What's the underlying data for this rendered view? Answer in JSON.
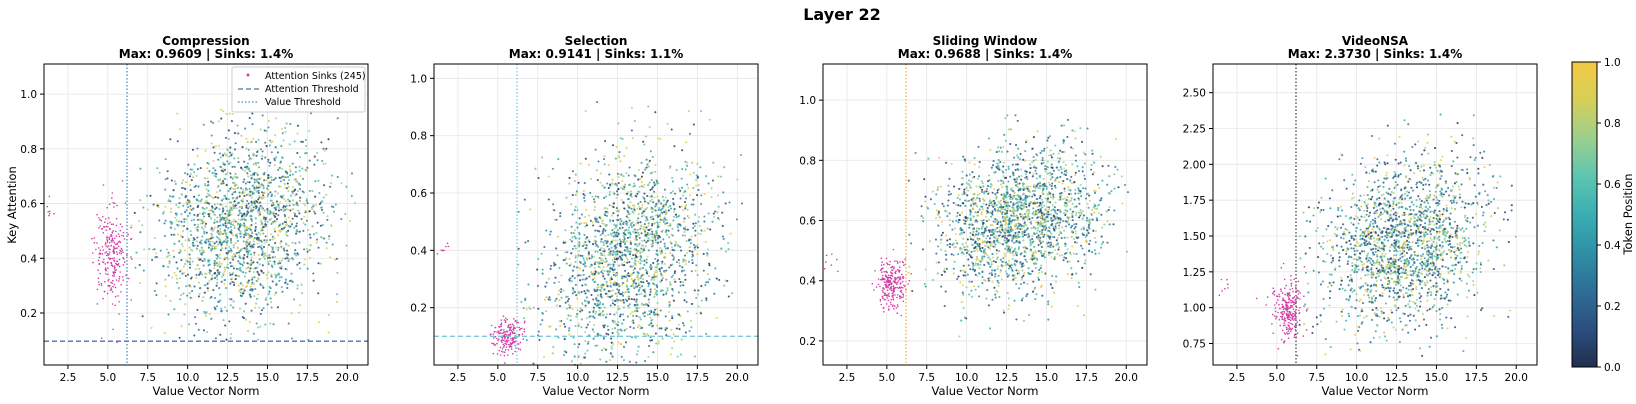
{
  "figure": {
    "title": "Layer 22"
  },
  "colorbar": {
    "label": "Token Position",
    "ticks": [
      "0.0",
      "0.2",
      "0.4",
      "0.6",
      "0.8",
      "1.0"
    ],
    "colormap": [
      "#222f4e",
      "#2a4f7f",
      "#2e6e96",
      "#2f8fa6",
      "#3aaeb3",
      "#5ec5b0",
      "#9ccf8d",
      "#d6cf5a",
      "#f4c943"
    ]
  },
  "chart_data": [
    {
      "type": "scatter",
      "name": "Compression",
      "title": "Compression",
      "subtitle": "Max: 0.9609 | Sinks: 1.4%",
      "xlabel": "Value Vector Norm",
      "ylabel": "Key Attention",
      "xlim": [
        1.0,
        21.3
      ],
      "ylim": [
        0.01,
        1.11
      ],
      "xticks": [
        "2.5",
        "5.0",
        "7.5",
        "10.0",
        "12.5",
        "15.0",
        "17.5",
        "20.0"
      ],
      "yticks": [
        "0.2",
        "0.4",
        "0.6",
        "0.8",
        "1.0"
      ],
      "ytick_values": [
        0.2,
        0.4,
        0.6,
        0.8,
        1.0
      ],
      "value_threshold": 6.2,
      "attention_threshold": 0.097,
      "value_threshold_color": "#4a8db8",
      "attention_threshold_color": "#4a74a8",
      "cluster": {
        "cx": 13.4,
        "cy": 0.52,
        "sx": 2.6,
        "sy": 0.17,
        "xmin": 6.4,
        "xmax": 20.6,
        "ymin": 0.1,
        "ymax": 0.96
      },
      "sinks": {
        "cx": 5.2,
        "cy": 0.42,
        "sx": 0.55,
        "sy": 0.09,
        "count": 245
      },
      "legend": {
        "position": "top-right",
        "entries": [
          "Attention Sinks (245)",
          "Attention Threshold",
          "Value Threshold"
        ]
      }
    },
    {
      "type": "scatter",
      "name": "Selection",
      "title": "Selection",
      "subtitle": "Max: 0.9141 | Sinks: 1.1%",
      "xlabel": "Value Vector Norm",
      "xlim": [
        1.0,
        21.3
      ],
      "ylim": [
        0.0,
        1.05
      ],
      "xticks": [
        "2.5",
        "5.0",
        "7.5",
        "10.0",
        "12.5",
        "15.0",
        "17.5",
        "20.0"
      ],
      "yticks": [
        "0.2",
        "0.4",
        "0.6",
        "0.8",
        "1.0"
      ],
      "ytick_values": [
        0.2,
        0.4,
        0.6,
        0.8,
        1.0
      ],
      "value_threshold": 6.2,
      "attention_threshold": 0.1,
      "value_threshold_color": "#7ec8e3",
      "attention_threshold_color": "#7ec8d8",
      "cluster": {
        "cx": 13.2,
        "cy": 0.38,
        "sx": 2.6,
        "sy": 0.18,
        "xmin": 6.0,
        "xmax": 20.4,
        "ymin": 0.0,
        "ymax": 0.92
      },
      "sinks": {
        "cx": 5.6,
        "cy": 0.1,
        "sx": 0.45,
        "sy": 0.03,
        "count": 190
      }
    },
    {
      "type": "scatter",
      "name": "Sliding Window",
      "title": "Sliding Window",
      "subtitle": "Max: 0.9688 | Sinks: 1.4%",
      "xlabel": "Value Vector Norm",
      "xlim": [
        1.0,
        21.3
      ],
      "ylim": [
        0.12,
        1.12
      ],
      "xticks": [
        "2.5",
        "5.0",
        "7.5",
        "10.0",
        "12.5",
        "15.0",
        "17.5",
        "20.0"
      ],
      "yticks": [
        "0.2",
        "0.4",
        "0.6",
        "0.8",
        "1.0"
      ],
      "ytick_values": [
        0.2,
        0.4,
        0.6,
        0.8,
        1.0
      ],
      "value_threshold": 6.2,
      "value_threshold_color": "#f5b041",
      "cluster": {
        "cx": 13.3,
        "cy": 0.6,
        "sx": 2.6,
        "sy": 0.12,
        "xmin": 6.3,
        "xmax": 20.2,
        "ymin": 0.17,
        "ymax": 0.97
      },
      "sinks": {
        "cx": 5.3,
        "cy": 0.39,
        "sx": 0.45,
        "sy": 0.04,
        "count": 245
      }
    },
    {
      "type": "scatter",
      "name": "VideoNSA",
      "title": "VideoNSA",
      "subtitle": "Max: 2.3730 | Sinks: 1.4%",
      "xlabel": "Value Vector Norm",
      "xlim": [
        1.0,
        21.3
      ],
      "ylim": [
        0.6,
        2.7
      ],
      "xticks": [
        "2.5",
        "5.0",
        "7.5",
        "10.0",
        "12.5",
        "15.0",
        "17.5",
        "20.0"
      ],
      "yticks": [
        "0.75",
        "1.00",
        "1.25",
        "1.50",
        "1.75",
        "2.00",
        "2.25",
        "2.50"
      ],
      "ytick_values": [
        0.75,
        1.0,
        1.25,
        1.5,
        1.75,
        2.0,
        2.25,
        2.5
      ],
      "value_threshold": 6.2,
      "value_threshold_color": "#444444",
      "cluster": {
        "cx": 13.0,
        "cy": 1.45,
        "sx": 2.6,
        "sy": 0.3,
        "xmin": 6.3,
        "xmax": 20.0,
        "ymin": 0.65,
        "ymax": 2.35
      },
      "sinks": {
        "cx": 5.7,
        "cy": 0.98,
        "sx": 0.45,
        "sy": 0.1,
        "count": 245
      }
    }
  ]
}
